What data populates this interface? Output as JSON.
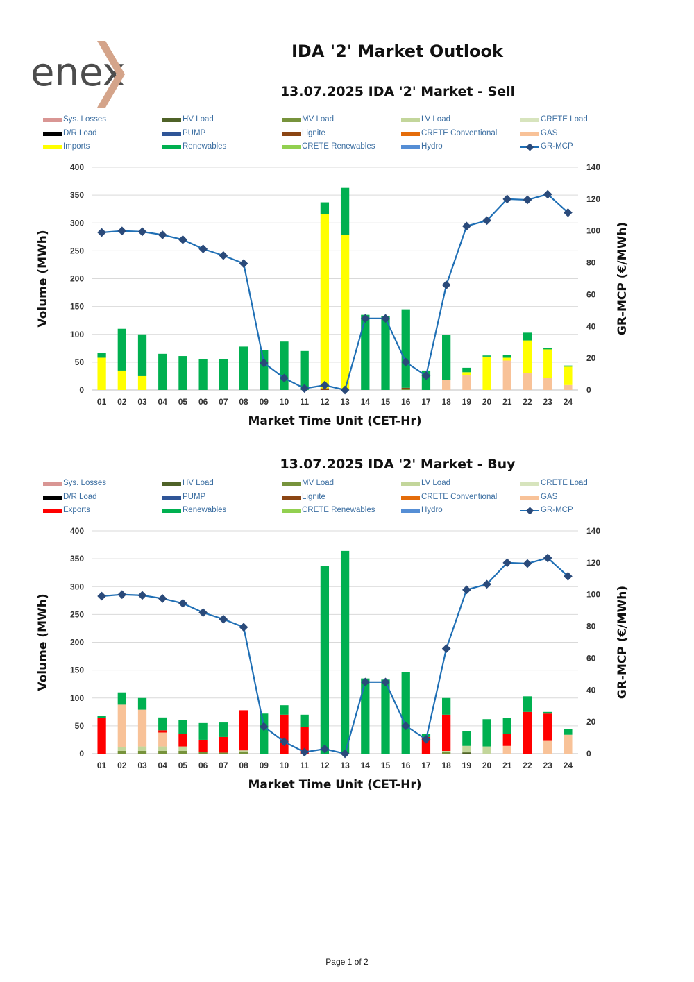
{
  "header": {
    "title": "IDA '2' Market Outlook",
    "logo_text": "enex"
  },
  "footer": {
    "text": "Page 1 of 2"
  },
  "colors": {
    "Sys. Losses": "#d99694",
    "HV Load": "#4f6228",
    "MV Load": "#77933c",
    "LV Load": "#c3d69b",
    "CRETE Load": "#d7e4bd",
    "D/R Load": "#000000",
    "PUMP": "#2f5597",
    "Lignite": "#8b4513",
    "CRETE Conventional": "#e46c0a",
    "GAS": "#f8c298",
    "Imports": "#ffff00",
    "Exports": "#ff0000",
    "Renewables": "#00b050",
    "CRETE Renewables": "#92d050",
    "Hydro": "#558ed5",
    "GR-MCP": "#1f6fb5",
    "GR-MCP-marker": "#2a4a7a",
    "logo_orange": "#d4a48a",
    "logo_dark": "#4d4d4d"
  },
  "chart_data": [
    {
      "id": "sell",
      "type": "bar",
      "title": "13.07.2025  IDA '2' Market - Sell",
      "xlabel": "Market Time Unit (CET-Hr)",
      "ylabel": "Volume (MWh)",
      "y2label": "GR-MCP (€/MWh)",
      "ylim": [
        0,
        400
      ],
      "yticks": [
        0,
        50,
        100,
        150,
        200,
        250,
        300,
        350,
        400
      ],
      "y2lim": [
        0,
        140
      ],
      "y2ticks": [
        0,
        20,
        40,
        60,
        80,
        100,
        120,
        140
      ],
      "grid": true,
      "stacked": true,
      "legend": [
        "Sys. Losses",
        "HV Load",
        "MV Load",
        "LV Load",
        "CRETE Load",
        "D/R Load",
        "PUMP",
        "Lignite",
        "CRETE Conventional",
        "GAS",
        "Imports",
        "Renewables",
        "CRETE Renewables",
        "Hydro",
        "GR-MCP"
      ],
      "categories": [
        "01",
        "02",
        "03",
        "04",
        "05",
        "06",
        "07",
        "08",
        "09",
        "10",
        "11",
        "12",
        "13",
        "14",
        "15",
        "16",
        "17",
        "18",
        "19",
        "20",
        "21",
        "22",
        "23",
        "24"
      ],
      "series": [
        {
          "name": "MV Load",
          "values": [
            0,
            0,
            0,
            0,
            0,
            0,
            0,
            0,
            0,
            0,
            0,
            0,
            0,
            0,
            0,
            2,
            0,
            0,
            0,
            0,
            0,
            0,
            0,
            0
          ]
        },
        {
          "name": "Lignite",
          "values": [
            0,
            0,
            0,
            0,
            0,
            0,
            0,
            0,
            0,
            0,
            0,
            3,
            0,
            0,
            0,
            2,
            0,
            0,
            0,
            0,
            0,
            0,
            0,
            0
          ]
        },
        {
          "name": "GAS",
          "values": [
            0,
            0,
            0,
            0,
            0,
            0,
            0,
            0,
            0,
            0,
            0,
            0,
            0,
            0,
            0,
            0,
            0,
            18,
            27,
            0,
            53,
            31,
            22,
            9
          ]
        },
        {
          "name": "Imports",
          "values": [
            58,
            35,
            25,
            0,
            0,
            0,
            0,
            0,
            0,
            0,
            0,
            313,
            278,
            0,
            0,
            0,
            0,
            0,
            5,
            60,
            5,
            58,
            51,
            33
          ]
        },
        {
          "name": "Renewables",
          "values": [
            9,
            75,
            75,
            65,
            61,
            55,
            56,
            78,
            72,
            87,
            70,
            21,
            85,
            135,
            133,
            141,
            35,
            81,
            8,
            2,
            5,
            14,
            3,
            2
          ]
        }
      ],
      "line": {
        "name": "GR-MCP",
        "axis": "y2",
        "values": [
          99,
          100,
          99.5,
          97.5,
          94.5,
          88.7,
          84.5,
          79.5,
          17,
          7.5,
          1,
          3,
          0,
          45,
          45,
          17.5,
          9,
          66,
          103,
          106.5,
          120,
          119.5,
          123,
          111.5
        ]
      }
    },
    {
      "id": "buy",
      "type": "bar",
      "title": "13.07.2025  IDA '2' Market - Buy",
      "xlabel": "Market Time Unit (CET-Hr)",
      "ylabel": "Volume (MWh)",
      "y2label": "GR-MCP (€/MWh)",
      "ylim": [
        0,
        400
      ],
      "yticks": [
        0,
        50,
        100,
        150,
        200,
        250,
        300,
        350,
        400
      ],
      "y2lim": [
        0,
        140
      ],
      "y2ticks": [
        0,
        20,
        40,
        60,
        80,
        100,
        120,
        140
      ],
      "grid": true,
      "stacked": true,
      "legend": [
        "Sys. Losses",
        "HV Load",
        "MV Load",
        "LV Load",
        "CRETE Load",
        "D/R Load",
        "PUMP",
        "Lignite",
        "CRETE Conventional",
        "GAS",
        "Exports",
        "Renewables",
        "CRETE Renewables",
        "Hydro",
        "GR-MCP"
      ],
      "categories": [
        "01",
        "02",
        "03",
        "04",
        "05",
        "06",
        "07",
        "08",
        "09",
        "10",
        "11",
        "12",
        "13",
        "14",
        "15",
        "16",
        "17",
        "18",
        "19",
        "20",
        "21",
        "22",
        "23",
        "24"
      ],
      "series": [
        {
          "name": "HV Load",
          "values": [
            0,
            0,
            0,
            0,
            0,
            0,
            0,
            0,
            0,
            0,
            0,
            0,
            0,
            0,
            0,
            0,
            0,
            0,
            2,
            0,
            0,
            0,
            0,
            0
          ]
        },
        {
          "name": "MV Load",
          "values": [
            0,
            5,
            5,
            5,
            5,
            3,
            2,
            3,
            0,
            0,
            0,
            0,
            0,
            0,
            0,
            0,
            0,
            3,
            2,
            0,
            0,
            0,
            0,
            0
          ]
        },
        {
          "name": "LV Load",
          "values": [
            0,
            7,
            8,
            8,
            8,
            0,
            0,
            3,
            0,
            0,
            0,
            0,
            0,
            0,
            0,
            0,
            0,
            2,
            10,
            13,
            0,
            0,
            0,
            0
          ]
        },
        {
          "name": "GAS",
          "values": [
            0,
            76,
            66,
            25,
            0,
            0,
            0,
            0,
            0,
            0,
            0,
            0,
            0,
            0,
            0,
            0,
            0,
            0,
            0,
            0,
            14,
            0,
            23,
            34
          ]
        },
        {
          "name": "Exports",
          "values": [
            64,
            0,
            0,
            4,
            22,
            22,
            28,
            72,
            0,
            70,
            48,
            0,
            0,
            0,
            0,
            0,
            30,
            65,
            0,
            0,
            22,
            75,
            49,
            0
          ]
        },
        {
          "name": "Renewables",
          "values": [
            4,
            22,
            21,
            23,
            26,
            30,
            26,
            0,
            72,
            17,
            22,
            337,
            364,
            135,
            133,
            146,
            6,
            30,
            26,
            49,
            28,
            28,
            3,
            10
          ]
        }
      ],
      "line": {
        "name": "GR-MCP",
        "axis": "y2",
        "values": [
          99,
          100,
          99.5,
          97.5,
          94.5,
          88.7,
          84.5,
          79.5,
          17,
          7.5,
          1,
          3,
          0,
          45,
          45,
          17.5,
          9,
          66,
          103,
          106.5,
          120,
          119.5,
          123,
          111.5
        ]
      }
    }
  ]
}
